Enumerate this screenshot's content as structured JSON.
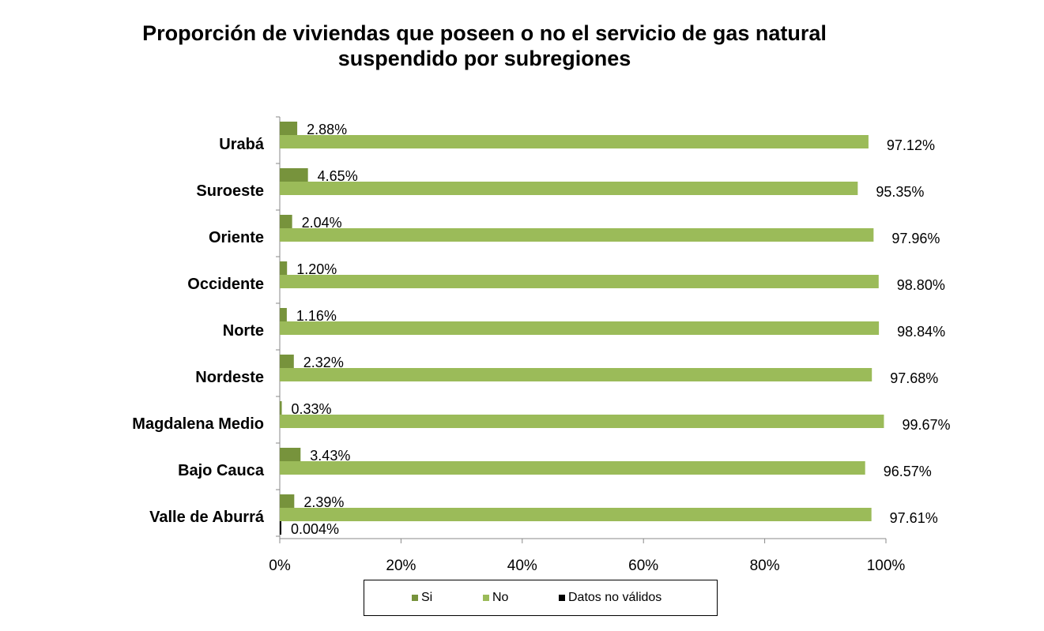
{
  "chart_data": {
    "type": "bar",
    "orientation": "horizontal",
    "title_lines": [
      "Proporción de viviendas que poseen o no el servicio de gas natural",
      "suspendido por subregiones"
    ],
    "categories": [
      "Urabá",
      "Suroeste",
      "Oriente",
      "Occidente",
      "Norte",
      "Nordeste",
      "Magdalena Medio",
      "Bajo Cauca",
      "Valle de Aburrá"
    ],
    "series": [
      {
        "name": "Si",
        "color": "#77933c",
        "values": [
          2.88,
          4.65,
          2.04,
          1.2,
          1.16,
          2.32,
          0.33,
          3.43,
          2.39
        ],
        "labels": [
          "2.88%",
          "4.65%",
          "2.04%",
          "1.20%",
          "1.16%",
          "2.32%",
          "0.33%",
          "3.43%",
          "2.39%"
        ]
      },
      {
        "name": "No",
        "color": "#9bbb59",
        "values": [
          97.12,
          95.35,
          97.96,
          98.8,
          98.84,
          97.68,
          99.67,
          96.57,
          97.61
        ],
        "labels": [
          "97.12%",
          "95.35%",
          "97.96%",
          "98.80%",
          "98.84%",
          "97.68%",
          "99.67%",
          "96.57%",
          "97.61%"
        ]
      },
      {
        "name": "Datos no válidos",
        "color": "#000000",
        "values": [
          null,
          null,
          null,
          null,
          null,
          null,
          null,
          null,
          0.004
        ],
        "labels": [
          "",
          "",
          "",
          "",
          "",
          "",
          "",
          "",
          "0.004%"
        ]
      }
    ],
    "xlim": [
      0,
      100
    ],
    "x_ticks": [
      "0%",
      "20%",
      "40%",
      "60%",
      "80%",
      "100%"
    ],
    "grid": false,
    "legend_position": "bottom"
  }
}
